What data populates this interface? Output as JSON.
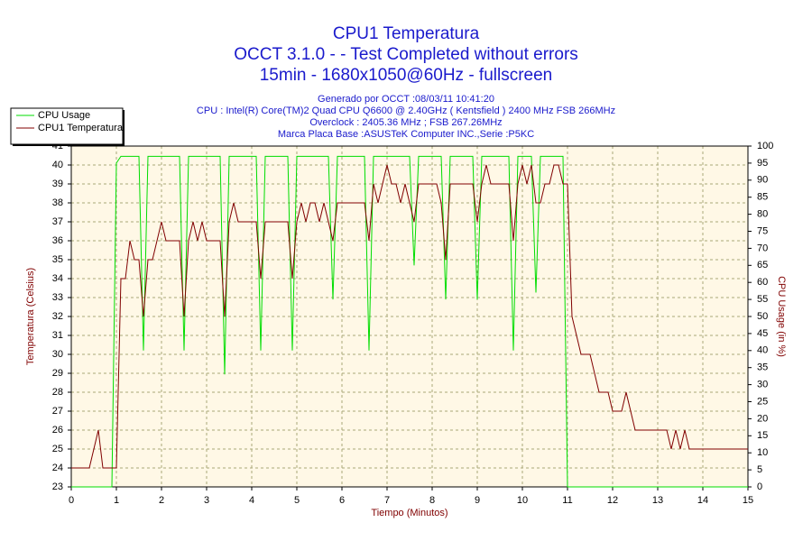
{
  "chart_data": {
    "type": "line",
    "title": "CPU1 Temperatura",
    "subtitle": [
      "OCCT 3.1.0 -  - Test Completed without errors",
      "15min - 1680x1050@60Hz - fullscreen"
    ],
    "info": [
      "Generado por OCCT :08/03/11 10:41:20",
      "CPU : Intel(R) Core(TM)2 Quad CPU Q6600 @ 2.40GHz ( Kentsfield ) 2400 MHz FSB 266MHz",
      "Overclock : 2405.36 MHz ; FSB 267.26MHz",
      "Marca Placa Base :ASUSTeK Computer INC.,Serie :P5KC"
    ],
    "x_label": "Tiempo (Minutos)",
    "y_label": "Temperatura (Celsius)",
    "y2_label": "CPU Usage (in %)",
    "legend": "upper left",
    "grid": true,
    "x": [
      0,
      0.1,
      0.2,
      0.3,
      0.4,
      0.5,
      0.6,
      0.7,
      0.8,
      0.9,
      1,
      1.1,
      1.2,
      1.3,
      1.4,
      1.5,
      1.6,
      1.7,
      1.8,
      1.9,
      2,
      2.1,
      2.2,
      2.3,
      2.4,
      2.5,
      2.6,
      2.7,
      2.8,
      2.9,
      3,
      3.1,
      3.2,
      3.3,
      3.4,
      3.5,
      3.6,
      3.7,
      3.8,
      3.9,
      4,
      4.1,
      4.2,
      4.3,
      4.4,
      4.5,
      4.6,
      4.7,
      4.8,
      4.9,
      5,
      5.1,
      5.2,
      5.3,
      5.4,
      5.5,
      5.6,
      5.7,
      5.8,
      5.9,
      6,
      6.1,
      6.2,
      6.3,
      6.4,
      6.5,
      6.6,
      6.7,
      6.8,
      6.9,
      7,
      7.1,
      7.2,
      7.3,
      7.4,
      7.5,
      7.6,
      7.7,
      7.8,
      7.9,
      8,
      8.1,
      8.2,
      8.3,
      8.4,
      8.5,
      8.6,
      8.7,
      8.8,
      8.9,
      9,
      9.1,
      9.2,
      9.3,
      9.4,
      9.5,
      9.6,
      9.7,
      9.8,
      9.9,
      10,
      10.1,
      10.2,
      10.3,
      10.4,
      10.5,
      10.6,
      10.7,
      10.8,
      10.9,
      11,
      11.1,
      11.2,
      11.3,
      11.4,
      11.5,
      11.6,
      11.7,
      11.8,
      11.9,
      12,
      12.1,
      12.2,
      12.3,
      12.4,
      12.5,
      12.6,
      12.7,
      12.8,
      12.9,
      13,
      13.1,
      13.2,
      13.3,
      13.4,
      13.5,
      13.6,
      13.7,
      13.8,
      13.9,
      14,
      14.1,
      14.2,
      14.3,
      14.4,
      14.5,
      14.6,
      14.7,
      14.8,
      14.9,
      15
    ],
    "series": [
      {
        "name": "CPU Usage",
        "color": "#00dd00",
        "axis": "y2",
        "values": [
          0,
          0,
          0,
          0,
          0,
          0,
          0,
          0,
          0,
          0,
          95,
          97,
          97,
          97,
          97,
          97,
          40,
          97,
          97,
          97,
          97,
          97,
          97,
          97,
          97,
          40,
          97,
          97,
          97,
          97,
          97,
          97,
          97,
          97,
          33,
          97,
          97,
          97,
          97,
          97,
          97,
          97,
          40,
          97,
          97,
          97,
          97,
          97,
          97,
          40,
          97,
          97,
          97,
          97,
          97,
          97,
          97,
          97,
          55,
          97,
          97,
          97,
          97,
          97,
          97,
          97,
          40,
          97,
          97,
          97,
          97,
          97,
          97,
          97,
          97,
          97,
          65,
          97,
          97,
          97,
          97,
          97,
          97,
          55,
          97,
          97,
          97,
          97,
          97,
          97,
          55,
          97,
          97,
          97,
          97,
          97,
          97,
          97,
          40,
          97,
          97,
          97,
          97,
          57,
          97,
          97,
          97,
          97,
          97,
          97,
          0,
          0,
          0,
          0,
          0,
          0,
          0,
          0,
          0,
          0,
          0,
          0,
          0,
          0,
          0,
          0,
          0,
          0,
          0,
          0,
          0,
          0,
          0,
          0,
          0,
          0,
          0,
          0,
          0,
          0,
          0,
          0,
          0,
          0,
          0,
          0,
          0,
          0,
          0,
          0,
          0
        ]
      },
      {
        "name": "CPU1 Temperatura",
        "color": "#800000",
        "values": [
          24,
          24,
          24,
          24,
          24,
          25,
          26,
          24,
          24,
          24,
          24,
          34,
          34,
          36,
          35,
          35,
          32,
          35,
          35,
          36,
          37,
          36,
          36,
          36,
          36,
          32,
          36,
          37,
          36,
          37,
          36,
          36,
          36,
          36,
          32,
          37,
          38,
          37,
          37,
          37,
          37,
          37,
          34,
          37,
          37,
          37,
          37,
          37,
          37,
          34,
          37,
          38,
          37,
          38,
          38,
          37,
          38,
          37,
          36,
          38,
          38,
          38,
          38,
          38,
          38,
          38,
          36,
          39,
          38,
          39,
          40,
          39,
          39,
          38,
          39,
          38,
          37,
          39,
          39,
          39,
          39,
          39,
          38,
          35,
          39,
          39,
          39,
          39,
          39,
          39,
          37,
          39,
          40,
          39,
          39,
          39,
          39,
          39,
          36,
          39,
          40,
          39,
          40,
          38,
          38,
          39,
          39,
          40,
          40,
          39,
          39,
          32,
          31,
          30,
          30,
          30,
          29,
          28,
          28,
          28,
          27,
          27,
          27,
          28,
          27,
          26,
          26,
          26,
          26,
          26,
          26,
          26,
          26,
          25,
          26,
          25,
          26,
          25,
          25,
          25,
          25,
          25,
          25,
          25,
          25,
          25,
          25,
          25,
          25,
          25,
          25
        ]
      }
    ],
    "xlim": [
      0,
      15
    ],
    "xticks": [
      0,
      1,
      2,
      3,
      4,
      5,
      6,
      7,
      8,
      9,
      10,
      11,
      12,
      13,
      14,
      15
    ],
    "ylim": [
      23,
      41
    ],
    "yticks": [
      23,
      24,
      25,
      26,
      27,
      28,
      29,
      30,
      31,
      32,
      33,
      34,
      35,
      36,
      37,
      38,
      39,
      40,
      41
    ],
    "y2lim": [
      0,
      100
    ],
    "y2ticks": [
      0,
      5,
      10,
      15,
      20,
      25,
      30,
      35,
      40,
      45,
      50,
      55,
      60,
      65,
      70,
      75,
      80,
      85,
      90,
      95,
      100
    ]
  }
}
